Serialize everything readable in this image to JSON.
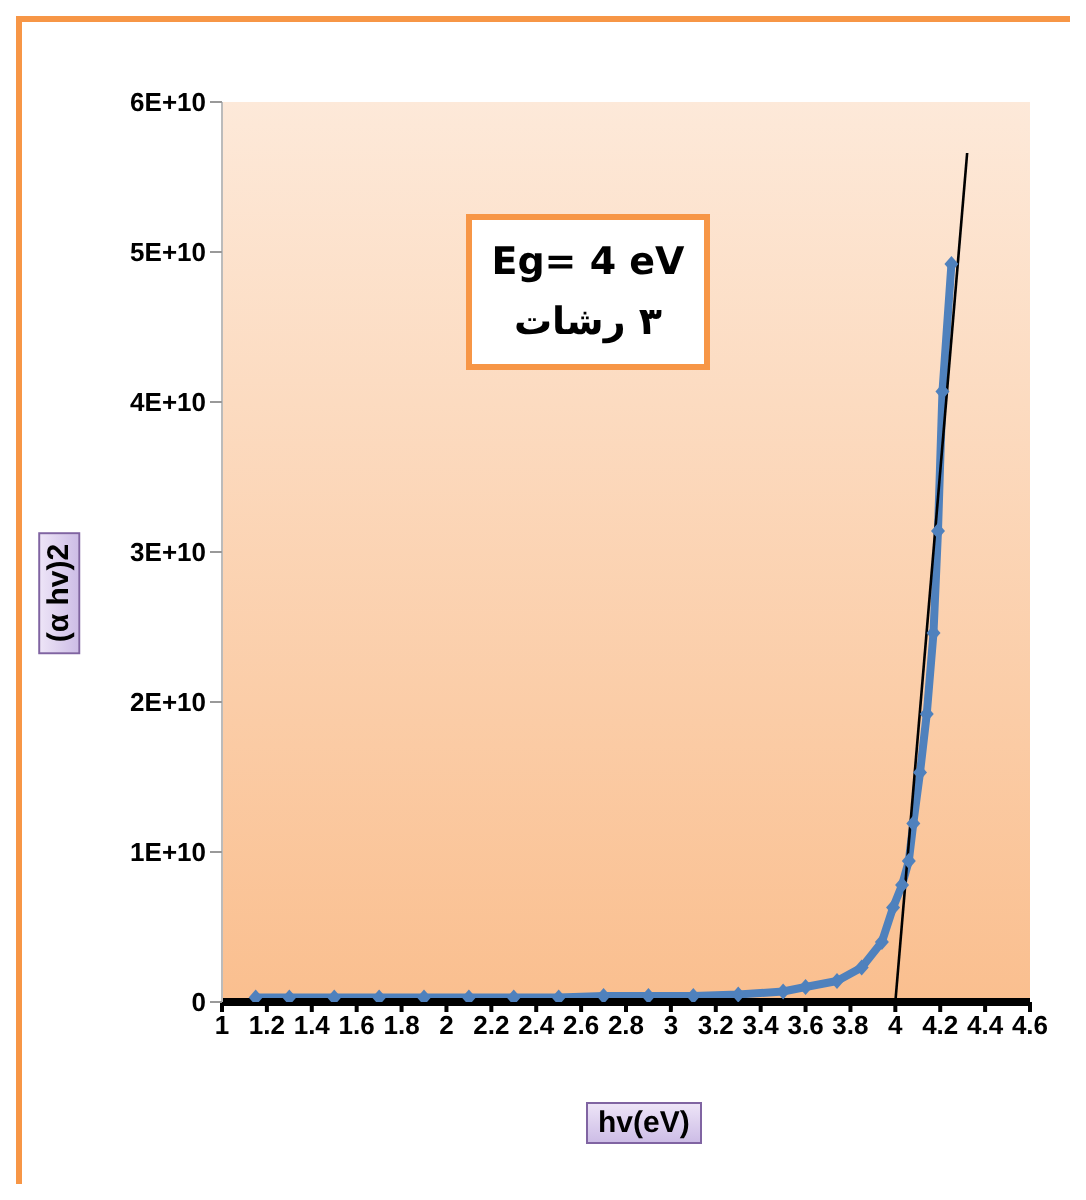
{
  "chart_data": {
    "type": "line",
    "xlabel": "hv(eV)",
    "ylabel": "(α hv)2",
    "annotations": [
      "Eg= 4 eV",
      "٣ رشات"
    ],
    "xlim": [
      1,
      4.6
    ],
    "xticks": [
      1,
      1.2,
      1.4,
      1.6,
      1.8,
      2,
      2.2,
      2.4,
      2.6,
      2.8,
      3,
      3.2,
      3.4,
      3.6,
      3.8,
      4,
      4.2,
      4.4,
      4.6
    ],
    "ylim": [
      0,
      60000000000
    ],
    "yticks": [
      0,
      {
        "value": 10000000000,
        "label": "1E+10"
      },
      {
        "value": 20000000000,
        "label": "2E+10"
      },
      {
        "value": 30000000000,
        "label": "3E+10"
      },
      {
        "value": 40000000000,
        "label": "4E+10"
      },
      {
        "value": 50000000000,
        "label": "5E+10"
      },
      {
        "value": 60000000000,
        "label": "6E+10"
      }
    ],
    "grid": false,
    "marker": "diamond",
    "line_style": "solid",
    "series": [
      {
        "color": "#4f81bd",
        "x": [
          1.15,
          1.3,
          1.5,
          1.7,
          1.9,
          2.1,
          2.3,
          2.5,
          2.7,
          2.9,
          3.1,
          3.3,
          3.5,
          3.6,
          3.74,
          3.85,
          3.94,
          3.99,
          4.03,
          4.06,
          4.08,
          4.11,
          4.14,
          4.17,
          4.19,
          4.21,
          4.25
        ],
        "values": [
          300000000,
          300000000,
          300000000,
          300000000,
          300000000,
          300000000,
          300000000,
          300000000,
          400000000,
          400000000,
          400000000,
          500000000,
          700000000,
          1000000000,
          1400000000,
          2300000000,
          4000000000,
          6300000000,
          7800000000,
          9400000000,
          11900000000,
          15300000000,
          19200000000,
          24600000000,
          31400000000,
          40700000000,
          49200000000
        ]
      },
      {
        "type": "line",
        "color": "#000000",
        "marker": "none",
        "x": [
          4.0,
          4.32
        ],
        "values": [
          0,
          56600000000
        ]
      }
    ]
  }
}
